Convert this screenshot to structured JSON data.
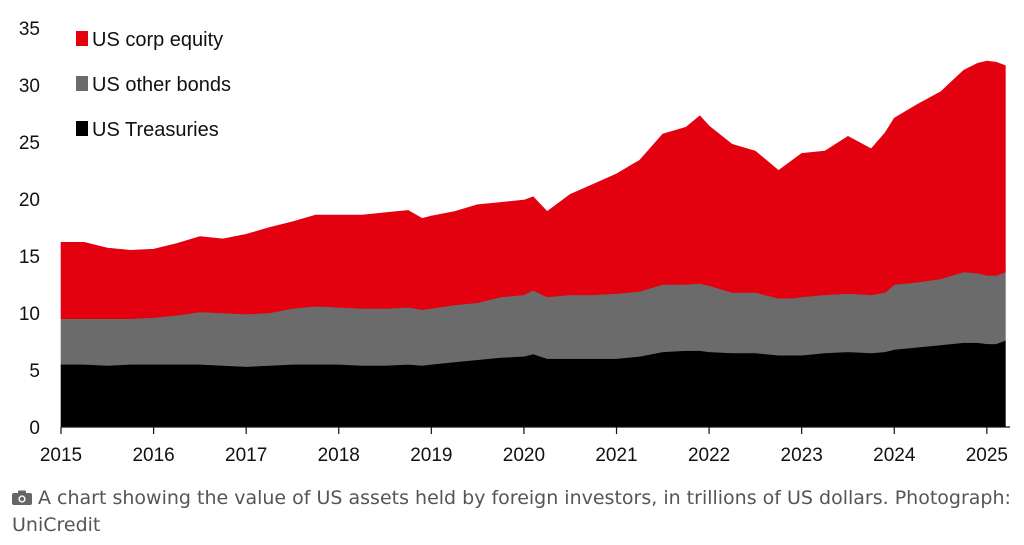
{
  "chart_data": {
    "type": "area",
    "stacked": true,
    "xlim": [
      2015,
      2025.25
    ],
    "ylim": [
      0,
      35
    ],
    "yticks": [
      0,
      5,
      10,
      15,
      20,
      25,
      30,
      35
    ],
    "xticks": [
      2015,
      2016,
      2017,
      2018,
      2019,
      2020,
      2021,
      2022,
      2023,
      2024,
      2025
    ],
    "grid": false,
    "legend_position": "top-left",
    "x": [
      2015.0,
      2015.25,
      2015.5,
      2015.75,
      2016.0,
      2016.25,
      2016.5,
      2016.75,
      2017.0,
      2017.25,
      2017.5,
      2017.75,
      2018.0,
      2018.25,
      2018.5,
      2018.75,
      2018.9,
      2019.0,
      2019.25,
      2019.5,
      2019.75,
      2020.0,
      2020.1,
      2020.25,
      2020.5,
      2020.75,
      2021.0,
      2021.25,
      2021.5,
      2021.75,
      2021.9,
      2022.0,
      2022.25,
      2022.5,
      2022.75,
      2022.9,
      2023.0,
      2023.25,
      2023.5,
      2023.75,
      2023.9,
      2024.0,
      2024.25,
      2024.5,
      2024.75,
      2024.9,
      2025.0,
      2025.1,
      2025.2
    ],
    "series": [
      {
        "name": "US Treasuries",
        "color": "#000000",
        "values": [
          5.5,
          5.5,
          5.4,
          5.5,
          5.5,
          5.5,
          5.5,
          5.4,
          5.3,
          5.4,
          5.5,
          5.5,
          5.5,
          5.4,
          5.4,
          5.5,
          5.4,
          5.5,
          5.7,
          5.9,
          6.1,
          6.2,
          6.4,
          6.0,
          6.0,
          6.0,
          6.0,
          6.2,
          6.6,
          6.7,
          6.7,
          6.6,
          6.5,
          6.5,
          6.3,
          6.3,
          6.3,
          6.5,
          6.6,
          6.5,
          6.6,
          6.8,
          7.0,
          7.2,
          7.4,
          7.4,
          7.3,
          7.3,
          7.6
        ]
      },
      {
        "name": "US other bonds",
        "color": "#6b6b6b",
        "values": [
          4.0,
          4.0,
          4.1,
          4.0,
          4.1,
          4.3,
          4.6,
          4.6,
          4.6,
          4.6,
          4.9,
          5.1,
          5.0,
          5.0,
          5.0,
          5.0,
          4.9,
          4.9,
          5.0,
          5.0,
          5.3,
          5.4,
          5.6,
          5.4,
          5.6,
          5.6,
          5.7,
          5.7,
          5.9,
          5.8,
          5.9,
          5.8,
          5.3,
          5.3,
          5.0,
          5.0,
          5.1,
          5.1,
          5.1,
          5.1,
          5.2,
          5.7,
          5.7,
          5.8,
          6.2,
          6.1,
          6.0,
          6.0,
          6.0
        ]
      },
      {
        "name": "US corp equity",
        "color": "#e3000f",
        "values": [
          6.7,
          6.7,
          6.2,
          6.0,
          6.0,
          6.3,
          6.6,
          6.5,
          7.0,
          7.5,
          7.6,
          8.0,
          8.1,
          8.2,
          8.4,
          8.5,
          8.0,
          8.1,
          8.2,
          8.6,
          8.3,
          8.3,
          8.2,
          7.5,
          8.8,
          9.7,
          10.5,
          11.5,
          13.2,
          13.8,
          14.7,
          14.0,
          13.0,
          12.4,
          11.2,
          12.1,
          12.6,
          12.6,
          13.8,
          12.8,
          14.0,
          14.6,
          15.6,
          16.4,
          17.7,
          18.4,
          18.8,
          18.7,
          18.1
        ]
      }
    ]
  },
  "caption": {
    "icon": "camera-icon",
    "text": "A chart showing the value of US assets held by foreign investors, in trillions of US dollars. Photograph: UniCredit"
  }
}
